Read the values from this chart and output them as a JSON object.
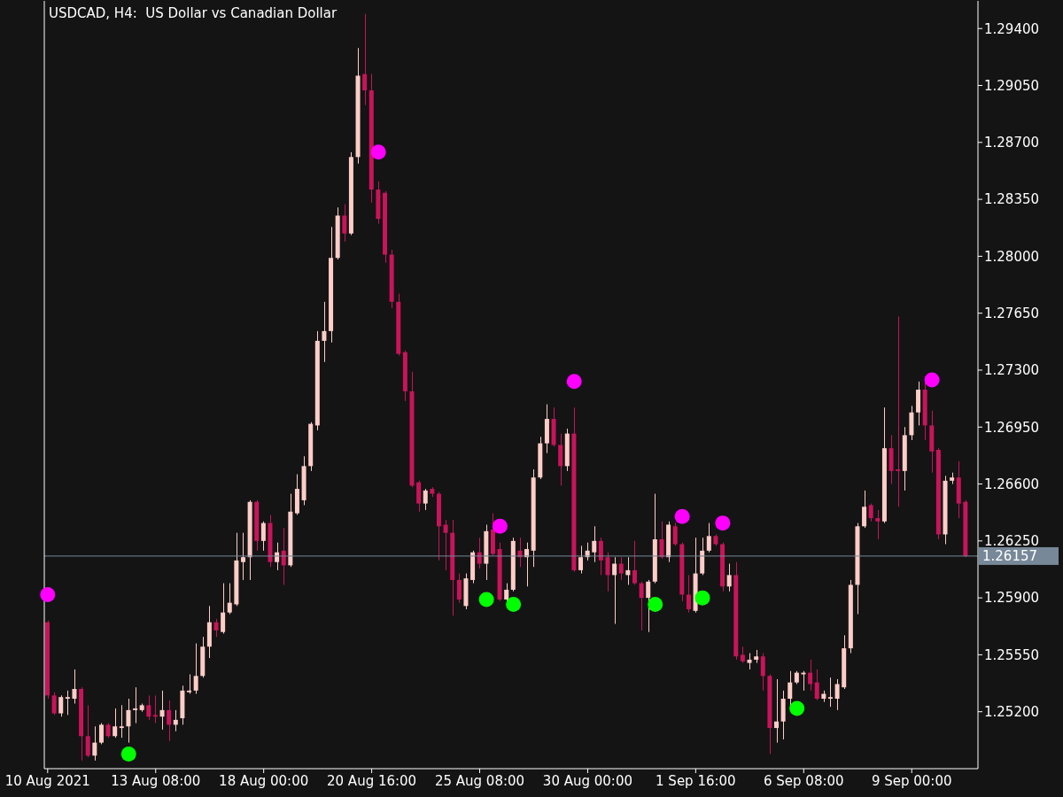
{
  "chart_data": {
    "type": "candlestick",
    "title": "USDCAD, H4:  US Dollar vs Canadian Dollar",
    "categories": [
      "10 Aug 2021",
      null,
      null,
      null,
      null,
      null,
      null,
      null,
      null,
      null,
      null,
      null,
      null,
      null,
      null,
      null,
      "13 Aug 08:00",
      null,
      null,
      null,
      null,
      null,
      null,
      null,
      null,
      null,
      null,
      null,
      null,
      null,
      null,
      null,
      "18 Aug 00:00",
      null,
      null,
      null,
      null,
      null,
      null,
      null,
      null,
      null,
      null,
      null,
      null,
      null,
      null,
      null,
      "20 Aug 16:00",
      null,
      null,
      null,
      null,
      null,
      null,
      null,
      null,
      null,
      null,
      null,
      null,
      null,
      null,
      null,
      "25 Aug 08:00",
      null,
      null,
      null,
      null,
      null,
      null,
      null,
      null,
      null,
      null,
      null,
      null,
      null,
      null,
      null,
      "30 Aug 00:00",
      null,
      null,
      null,
      null,
      null,
      null,
      null,
      null,
      null,
      null,
      null,
      null,
      null,
      null,
      null,
      "1 Sep 16:00",
      null,
      null,
      null,
      null,
      null,
      null,
      null,
      null,
      null,
      null,
      null,
      null,
      null,
      null,
      null,
      "6 Sep 08:00",
      null,
      null,
      null,
      null,
      null,
      null,
      null,
      null,
      null,
      null,
      null,
      null,
      null,
      null,
      null,
      "9 Sep 00:00",
      null,
      null,
      null,
      null,
      null,
      null,
      null,
      null
    ],
    "ohlc": [
      [
        1.2575,
        1.2576,
        1.2528,
        1.253
      ],
      [
        1.253,
        1.2532,
        1.2518,
        1.2519
      ],
      [
        1.2519,
        1.253,
        1.2517,
        1.2529
      ],
      [
        1.2528,
        1.2533,
        1.2518,
        1.2529
      ],
      [
        1.2528,
        1.2546,
        1.2525,
        1.2534
      ],
      [
        1.2534,
        1.2535,
        1.249,
        1.2505
      ],
      [
        1.2505,
        1.2524,
        1.2492,
        1.2493
      ],
      [
        1.2493,
        1.2511,
        1.249,
        1.2501
      ],
      [
        1.2501,
        1.2513,
        1.25,
        1.2512
      ],
      [
        1.2512,
        1.2513,
        1.2504,
        1.2505
      ],
      [
        1.2505,
        1.2522,
        1.2504,
        1.2511
      ],
      [
        1.251,
        1.2524,
        1.2504,
        1.2511
      ],
      [
        1.2511,
        1.2528,
        1.2501,
        1.2521
      ],
      [
        1.2521,
        1.2535,
        1.2513,
        1.2522
      ],
      [
        1.2521,
        1.2525,
        1.252,
        1.2524
      ],
      [
        1.2524,
        1.253,
        1.2515,
        1.2517
      ],
      [
        1.2518,
        1.253,
        1.2513,
        1.2517
      ],
      [
        1.2517,
        1.2533,
        1.2509,
        1.2521
      ],
      [
        1.2521,
        1.2527,
        1.2502,
        1.2512
      ],
      [
        1.2512,
        1.2521,
        1.2508,
        1.2515
      ],
      [
        1.2516,
        1.2536,
        1.2512,
        1.2533
      ],
      [
        1.2532,
        1.2543,
        1.2531,
        1.2533
      ],
      [
        1.2533,
        1.2562,
        1.2531,
        1.2542
      ],
      [
        1.2542,
        1.2566,
        1.2541,
        1.256
      ],
      [
        1.256,
        1.2585,
        1.2553,
        1.2575
      ],
      [
        1.2575,
        1.2577,
        1.2566,
        1.257
      ],
      [
        1.2569,
        1.2599,
        1.2568,
        1.2581
      ],
      [
        1.2581,
        1.2599,
        1.258,
        1.2587
      ],
      [
        1.2586,
        1.263,
        1.2585,
        1.2613
      ],
      [
        1.2612,
        1.263,
        1.2601,
        1.2615
      ],
      [
        1.2615,
        1.265,
        1.2601,
        1.2649
      ],
      [
        1.2649,
        1.265,
        1.2619,
        1.2625
      ],
      [
        1.2625,
        1.2637,
        1.2619,
        1.2636
      ],
      [
        1.2636,
        1.2641,
        1.2609,
        1.2612
      ],
      [
        1.2612,
        1.2624,
        1.2607,
        1.2618
      ],
      [
        1.2619,
        1.2633,
        1.2598,
        1.261
      ],
      [
        1.261,
        1.2654,
        1.2609,
        1.2643
      ],
      [
        1.2642,
        1.2666,
        1.2641,
        1.2657
      ],
      [
        1.265,
        1.2677,
        1.2647,
        1.2671
      ],
      [
        1.2671,
        1.2698,
        1.2668,
        1.2697
      ],
      [
        1.2696,
        1.2754,
        1.2693,
        1.2748
      ],
      [
        1.2748,
        1.2772,
        1.2735,
        1.2754
      ],
      [
        1.2754,
        1.2818,
        1.2747,
        1.2799
      ],
      [
        1.2799,
        1.283,
        1.2798,
        1.2825
      ],
      [
        1.2825,
        1.2832,
        1.2809,
        1.2814
      ],
      [
        1.2814,
        1.2864,
        1.2813,
        1.2861
      ],
      [
        1.2861,
        1.2928,
        1.2857,
        1.2911
      ],
      [
        1.2912,
        1.2949,
        1.2893,
        1.2902
      ],
      [
        1.2902,
        1.2912,
        1.2833,
        1.2841
      ],
      [
        1.2841,
        1.2846,
        1.282,
        1.2823
      ],
      [
        1.2839,
        1.284,
        1.2796,
        1.2801
      ],
      [
        1.2801,
        1.2804,
        1.2768,
        1.2772
      ],
      [
        1.2772,
        1.2777,
        1.2739,
        1.274
      ],
      [
        1.2741,
        1.2742,
        1.2711,
        1.2717
      ],
      [
        1.2717,
        1.2729,
        1.2658,
        1.2659
      ],
      [
        1.2661,
        1.2662,
        1.2643,
        1.2648
      ],
      [
        1.2648,
        1.2657,
        1.2644,
        1.2656
      ],
      [
        1.2657,
        1.2658,
        1.2652,
        1.2654
      ],
      [
        1.2654,
        1.2655,
        1.2613,
        1.2634
      ],
      [
        1.2635,
        1.2638,
        1.2607,
        1.263
      ],
      [
        1.263,
        1.2638,
        1.2579,
        1.2601
      ],
      [
        1.2601,
        1.2605,
        1.2587,
        1.2589
      ],
      [
        1.2585,
        1.2605,
        1.2583,
        1.2602
      ],
      [
        1.2601,
        1.2619,
        1.2599,
        1.2618
      ],
      [
        1.2618,
        1.2627,
        1.2608,
        1.2611
      ],
      [
        1.2611,
        1.2635,
        1.2601,
        1.2631
      ],
      [
        1.2632,
        1.2642,
        1.2616,
        1.2617
      ],
      [
        1.262,
        1.2624,
        1.2588,
        1.2589
      ],
      [
        1.2589,
        1.2599,
        1.2588,
        1.2595
      ],
      [
        1.2595,
        1.2627,
        1.2594,
        1.2625
      ],
      [
        1.2619,
        1.2627,
        1.2609,
        1.2615
      ],
      [
        1.2615,
        1.2624,
        1.2597,
        1.262
      ],
      [
        1.2619,
        1.2669,
        1.2609,
        1.2664
      ],
      [
        1.2664,
        1.2689,
        1.2663,
        1.2685
      ],
      [
        1.2685,
        1.2709,
        1.2679,
        1.27
      ],
      [
        1.27,
        1.2707,
        1.2683,
        1.2684
      ],
      [
        1.2684,
        1.2691,
        1.2659,
        1.2671
      ],
      [
        1.2671,
        1.2694,
        1.2668,
        1.2691
      ],
      [
        1.2691,
        1.2707,
        1.2606,
        1.2607
      ],
      [
        1.2607,
        1.2622,
        1.2605,
        1.2615
      ],
      [
        1.2615,
        1.2624,
        1.2613,
        1.2619
      ],
      [
        1.2618,
        1.2634,
        1.2612,
        1.2625
      ],
      [
        1.2625,
        1.2627,
        1.2604,
        1.2613
      ],
      [
        1.2615,
        1.2618,
        1.2594,
        1.2604
      ],
      [
        1.2604,
        1.2615,
        1.2574,
        1.2611
      ],
      [
        1.2611,
        1.2615,
        1.2601,
        1.2605
      ],
      [
        1.2604,
        1.2615,
        1.2598,
        1.2607
      ],
      [
        1.2607,
        1.2625,
        1.2598,
        1.2599
      ],
      [
        1.2599,
        1.26,
        1.257,
        1.259
      ],
      [
        1.259,
        1.2601,
        1.2569,
        1.26
      ],
      [
        1.26,
        1.2654,
        1.2599,
        1.2626
      ],
      [
        1.2626,
        1.2637,
        1.2614,
        1.2615
      ],
      [
        1.2615,
        1.2637,
        1.2612,
        1.2635
      ],
      [
        1.2634,
        1.2636,
        1.2622,
        1.2623
      ],
      [
        1.2623,
        1.2624,
        1.2588,
        1.2592
      ],
      [
        1.2592,
        1.2604,
        1.2581,
        1.2583
      ],
      [
        1.2582,
        1.2627,
        1.2581,
        1.2605
      ],
      [
        1.2605,
        1.2627,
        1.2604,
        1.2619
      ],
      [
        1.2619,
        1.2636,
        1.2618,
        1.2628
      ],
      [
        1.2628,
        1.2629,
        1.2622,
        1.2623
      ],
      [
        1.2623,
        1.2624,
        1.2594,
        1.2597
      ],
      [
        1.2597,
        1.2611,
        1.2594,
        1.2604
      ],
      [
        1.2604,
        1.2612,
        1.2552,
        1.2554
      ],
      [
        1.2555,
        1.256,
        1.255,
        1.2551
      ],
      [
        1.255,
        1.2556,
        1.2546,
        1.2552
      ],
      [
        1.2552,
        1.2558,
        1.255,
        1.2554
      ],
      [
        1.2554,
        1.2556,
        1.2533,
        1.2542
      ],
      [
        1.2542,
        1.2543,
        1.2494,
        1.251
      ],
      [
        1.251,
        1.254,
        1.2501,
        1.2514
      ],
      [
        1.2514,
        1.2533,
        1.2503,
        1.2528
      ],
      [
        1.2528,
        1.2545,
        1.2524,
        1.2538
      ],
      [
        1.2538,
        1.2545,
        1.2537,
        1.2544
      ],
      [
        1.2543,
        1.2545,
        1.2533,
        1.2544
      ],
      [
        1.2544,
        1.2552,
        1.2533,
        1.2537
      ],
      [
        1.2538,
        1.2546,
        1.2527,
        1.2528
      ],
      [
        1.2528,
        1.2533,
        1.2526,
        1.2531
      ],
      [
        1.2528,
        1.2541,
        1.2523,
        1.2529
      ],
      [
        1.2528,
        1.254,
        1.2521,
        1.2537
      ],
      [
        1.2535,
        1.2567,
        1.2534,
        1.2559
      ],
      [
        1.2559,
        1.2601,
        1.2556,
        1.2598
      ],
      [
        1.2598,
        1.2636,
        1.258,
        1.2634
      ],
      [
        1.2634,
        1.2656,
        1.2633,
        1.2646
      ],
      [
        1.2647,
        1.2648,
        1.2637,
        1.2639
      ],
      [
        1.2639,
        1.2644,
        1.2626,
        1.2637
      ],
      [
        1.2637,
        1.2707,
        1.2636,
        1.2682
      ],
      [
        1.2682,
        1.269,
        1.266,
        1.2668
      ],
      [
        1.2669,
        1.2763,
        1.2646,
        1.2668
      ],
      [
        1.2668,
        1.2695,
        1.2656,
        1.269
      ],
      [
        1.269,
        1.2708,
        1.2687,
        1.2704
      ],
      [
        1.2704,
        1.2723,
        1.2696,
        1.2718
      ],
      [
        1.2718,
        1.2723,
        1.2687,
        1.2696
      ],
      [
        1.2696,
        1.2705,
        1.2667,
        1.268
      ],
      [
        1.2681,
        1.2682,
        1.2626,
        1.2629
      ],
      [
        1.2629,
        1.2665,
        1.2623,
        1.2662
      ],
      [
        1.2662,
        1.2667,
        1.266,
        1.2664
      ],
      [
        1.2664,
        1.2674,
        1.2639,
        1.2648
      ],
      [
        1.2649,
        1.265,
        1.2615,
        1.26157
      ]
    ],
    "colors": [
      "#c8145a",
      "#c8145a",
      "#ffcdc8",
      "#ffcdc8",
      "#ffcdc8",
      "#c8145a",
      "#c8145a",
      "#ffcdc8",
      "#ffcdc8",
      "#c8145a",
      "#ffcdc8",
      "#ffcdc8",
      "#ffcdc8",
      "#ffcdc8",
      "#ffcdc8",
      "#c8145a",
      "#c8145a",
      "#ffcdc8",
      "#c8145a",
      "#ffcdc8",
      "#ffcdc8",
      "#ffcdc8",
      "#ffcdc8",
      "#ffcdc8",
      "#ffcdc8",
      "#c8145a",
      "#ffcdc8",
      "#ffcdc8",
      "#ffcdc8",
      "#ffcdc8",
      "#ffcdc8",
      "#c8145a",
      "#ffcdc8",
      "#c8145a",
      "#ffcdc8",
      "#c8145a",
      "#ffcdc8",
      "#ffcdc8",
      "#ffcdc8",
      "#ffcdc8",
      "#ffcdc8",
      "#ffcdc8",
      "#ffcdc8",
      "#ffcdc8",
      "#c8145a",
      "#ffcdc8",
      "#ffcdc8",
      "#c8145a",
      "#c8145a",
      "#c8145a",
      "#c8145a",
      "#c8145a",
      "#c8145a",
      "#c8145a",
      "#c8145a",
      "#c8145a",
      "#ffcdc8",
      "#c8145a",
      "#c8145a",
      "#c8145a",
      "#c8145a",
      "#c8145a",
      "#ffcdc8",
      "#ffcdc8",
      "#c8145a",
      "#ffcdc8",
      "#c8145a",
      "#c8145a",
      "#ffcdc8",
      "#ffcdc8",
      "#c8145a",
      "#ffcdc8",
      "#ffcdc8",
      "#ffcdc8",
      "#ffcdc8",
      "#c8145a",
      "#c8145a",
      "#ffcdc8",
      "#c8145a",
      "#ffcdc8",
      "#ffcdc8",
      "#ffcdc8",
      "#c8145a",
      "#c8145a",
      "#ffcdc8",
      "#c8145a",
      "#ffcdc8",
      "#c8145a",
      "#c8145a",
      "#ffcdc8",
      "#ffcdc8",
      "#c8145a",
      "#ffcdc8",
      "#c8145a",
      "#c8145a",
      "#c8145a",
      "#ffcdc8",
      "#ffcdc8",
      "#ffcdc8",
      "#c8145a",
      "#c8145a",
      "#ffcdc8",
      "#c8145a",
      "#c8145a",
      "#ffcdc8",
      "#ffcdc8",
      "#c8145a",
      "#c8145a",
      "#ffcdc8",
      "#ffcdc8",
      "#ffcdc8",
      "#ffcdc8",
      "#ffcdc8",
      "#c8145a",
      "#c8145a",
      "#ffcdc8",
      "#ffcdc8",
      "#ffcdc8",
      "#ffcdc8",
      "#ffcdc8",
      "#ffcdc8",
      "#ffcdc8",
      "#c8145a",
      "#c8145a",
      "#ffcdc8",
      "#c8145a",
      "#c8145a",
      "#ffcdc8",
      "#ffcdc8",
      "#ffcdc8",
      "#c8145a",
      "#c8145a",
      "#c8145a",
      "#ffcdc8",
      "#ffcdc8",
      "#c8145a",
      "#c8145a"
    ],
    "series": [
      {
        "type": "scatter",
        "color": "#ff00ff",
        "values": [
          1.2592,
          null,
          null,
          null,
          null,
          null,
          null,
          null,
          null,
          null,
          null,
          null,
          null,
          null,
          null,
          null,
          null,
          null,
          null,
          null,
          null,
          null,
          null,
          null,
          null,
          null,
          null,
          null,
          null,
          null,
          null,
          null,
          null,
          null,
          null,
          null,
          null,
          null,
          null,
          null,
          null,
          null,
          null,
          null,
          null,
          null,
          null,
          null,
          null,
          1.2864,
          null,
          null,
          null,
          null,
          null,
          null,
          null,
          null,
          null,
          null,
          null,
          null,
          null,
          null,
          null,
          null,
          null,
          1.2634,
          null,
          null,
          null,
          null,
          null,
          null,
          null,
          null,
          null,
          null,
          1.2723,
          null,
          null,
          null,
          null,
          null,
          null,
          null,
          null,
          null,
          null,
          null,
          null,
          null,
          null,
          null,
          1.264,
          null,
          null,
          null,
          null,
          null,
          1.2636,
          null,
          null,
          null,
          null,
          null,
          null,
          null,
          null,
          null,
          null,
          null,
          null,
          null,
          null,
          null,
          null,
          null,
          null,
          null,
          null,
          null,
          null,
          null,
          null,
          null,
          null,
          null,
          null,
          null,
          null,
          1.2724,
          null,
          null,
          null,
          null,
          null
        ]
      },
      {
        "type": "scatter",
        "color": "#00ff00",
        "values": [
          null,
          null,
          null,
          null,
          null,
          null,
          null,
          null,
          null,
          null,
          null,
          null,
          1.2494,
          null,
          null,
          null,
          null,
          null,
          null,
          null,
          null,
          null,
          null,
          null,
          null,
          null,
          null,
          null,
          null,
          null,
          null,
          null,
          null,
          null,
          null,
          null,
          null,
          null,
          null,
          null,
          null,
          null,
          null,
          null,
          null,
          null,
          null,
          null,
          null,
          null,
          null,
          null,
          null,
          null,
          null,
          null,
          null,
          null,
          null,
          null,
          null,
          null,
          null,
          null,
          null,
          1.2589,
          null,
          null,
          null,
          1.2586,
          null,
          null,
          null,
          null,
          null,
          null,
          null,
          null,
          null,
          null,
          null,
          null,
          null,
          null,
          null,
          null,
          null,
          null,
          null,
          null,
          1.2586,
          null,
          null,
          null,
          null,
          null,
          null,
          1.259,
          null,
          null,
          null,
          null,
          null,
          null,
          null,
          null,
          null,
          null,
          null,
          null,
          null,
          1.2522,
          null,
          null,
          null,
          null,
          null,
          null,
          null,
          null,
          null,
          null,
          null,
          null,
          null,
          null,
          null,
          null,
          null,
          null,
          null,
          null,
          null,
          null,
          null,
          null,
          null
        ]
      }
    ],
    "marker": "circle",
    "ylim": [
      1.2485,
      1.2957
    ],
    "yticks": [
      {
        "value": 1.252,
        "label": "1.25200"
      },
      {
        "value": 1.2555,
        "label": "1.25550"
      },
      {
        "value": 1.259,
        "label": "1.25900"
      },
      {
        "value": 1.2625,
        "label": "1.26250"
      },
      {
        "value": 1.266,
        "label": "1.26600"
      },
      {
        "value": 1.2695,
        "label": "1.26950"
      },
      {
        "value": 1.273,
        "label": "1.27300"
      },
      {
        "value": 1.2765,
        "label": "1.27650"
      },
      {
        "value": 1.28,
        "label": "1.28000"
      },
      {
        "value": 1.2835,
        "label": "1.28350"
      },
      {
        "value": 1.287,
        "label": "1.28700"
      },
      {
        "value": 1.2905,
        "label": "1.29050"
      },
      {
        "value": 1.294,
        "label": "1.29400"
      }
    ],
    "ref_lines": [
      {
        "axis": "y",
        "value": 1.26157,
        "label": "1.26157",
        "color": "#778899"
      }
    ]
  }
}
